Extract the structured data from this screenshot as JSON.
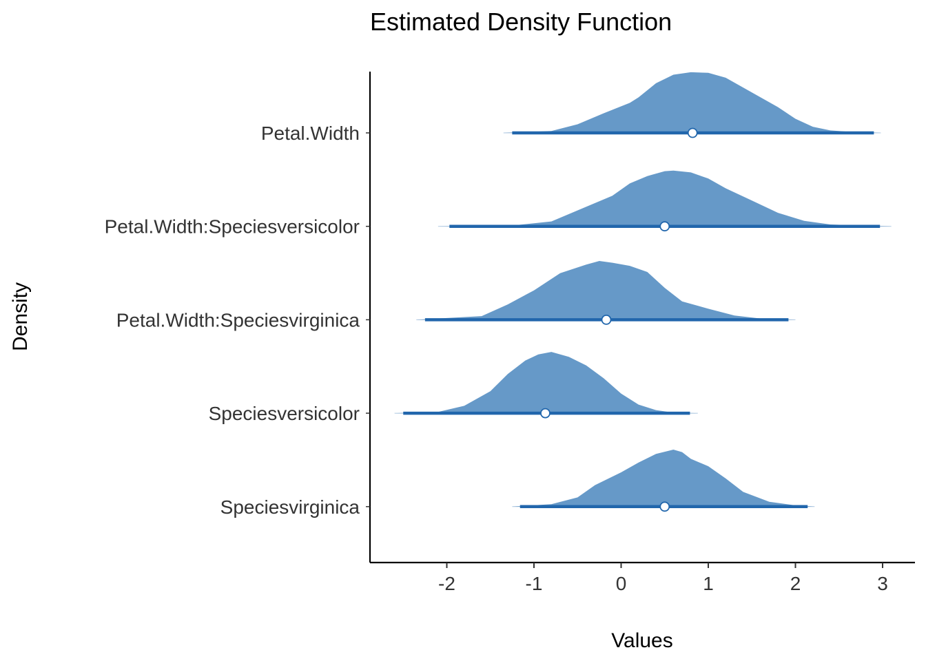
{
  "chart_data": {
    "type": "density-ridge",
    "title": "Estimated Density Function",
    "xlabel": "Values",
    "ylabel": "Density",
    "xlim": [
      -2.9,
      3.4
    ],
    "xticks": [
      -2,
      -1,
      0,
      1,
      2,
      3
    ],
    "grid": false,
    "legend": "none",
    "colors": {
      "fill": "#6699c8",
      "line": "#2166ac",
      "point_fill": "#ffffff",
      "point_stroke": "#2166ac"
    },
    "series": [
      {
        "label": "Petal.Width",
        "median": 0.82,
        "interval": [
          -1.25,
          2.9
        ],
        "range": [
          -1.35,
          2.98
        ],
        "density": [
          [
            -1.35,
            0.0
          ],
          [
            -0.8,
            0.03
          ],
          [
            -0.5,
            0.14
          ],
          [
            -0.2,
            0.32
          ],
          [
            0.1,
            0.49
          ],
          [
            0.2,
            0.58
          ],
          [
            0.4,
            0.81
          ],
          [
            0.6,
            0.95
          ],
          [
            0.8,
            0.99
          ],
          [
            1.0,
            0.98
          ],
          [
            1.2,
            0.9
          ],
          [
            1.4,
            0.74
          ],
          [
            1.6,
            0.58
          ],
          [
            1.8,
            0.42
          ],
          [
            2.0,
            0.23
          ],
          [
            2.2,
            0.1
          ],
          [
            2.4,
            0.04
          ],
          [
            2.7,
            0.01
          ],
          [
            2.98,
            0.0
          ]
        ]
      },
      {
        "label": "Petal.Width:Speciesversicolor",
        "median": 0.5,
        "interval": [
          -1.97,
          2.97
        ],
        "range": [
          -2.1,
          3.1
        ],
        "density": [
          [
            -2.1,
            0.0
          ],
          [
            -1.2,
            0.02
          ],
          [
            -0.8,
            0.08
          ],
          [
            -0.4,
            0.32
          ],
          [
            -0.1,
            0.5
          ],
          [
            0.1,
            0.7
          ],
          [
            0.3,
            0.82
          ],
          [
            0.5,
            0.9
          ],
          [
            0.6,
            0.91
          ],
          [
            0.8,
            0.88
          ],
          [
            1.0,
            0.78
          ],
          [
            1.2,
            0.62
          ],
          [
            1.5,
            0.42
          ],
          [
            1.8,
            0.22
          ],
          [
            2.1,
            0.09
          ],
          [
            2.4,
            0.03
          ],
          [
            2.8,
            0.01
          ],
          [
            3.1,
            0.0
          ]
        ]
      },
      {
        "label": "Petal.Width:Speciesvirginica",
        "median": -0.17,
        "interval": [
          -2.25,
          1.92
        ],
        "range": [
          -2.35,
          2.0
        ],
        "density": [
          [
            -2.35,
            0.0
          ],
          [
            -1.6,
            0.06
          ],
          [
            -1.3,
            0.25
          ],
          [
            -1.0,
            0.48
          ],
          [
            -0.7,
            0.76
          ],
          [
            -0.4,
            0.9
          ],
          [
            -0.25,
            0.96
          ],
          [
            -0.1,
            0.93
          ],
          [
            0.1,
            0.88
          ],
          [
            0.3,
            0.78
          ],
          [
            0.5,
            0.52
          ],
          [
            0.7,
            0.3
          ],
          [
            1.0,
            0.18
          ],
          [
            1.3,
            0.07
          ],
          [
            1.6,
            0.02
          ],
          [
            2.0,
            0.0
          ]
        ]
      },
      {
        "label": "Speciesversicolor",
        "median": -0.87,
        "interval": [
          -2.5,
          0.79
        ],
        "range": [
          -2.6,
          0.88
        ],
        "density": [
          [
            -2.6,
            0.0
          ],
          [
            -2.1,
            0.02
          ],
          [
            -1.8,
            0.12
          ],
          [
            -1.5,
            0.36
          ],
          [
            -1.3,
            0.64
          ],
          [
            -1.1,
            0.86
          ],
          [
            -0.95,
            0.96
          ],
          [
            -0.8,
            1.0
          ],
          [
            -0.6,
            0.92
          ],
          [
            -0.4,
            0.78
          ],
          [
            -0.2,
            0.57
          ],
          [
            0.0,
            0.32
          ],
          [
            0.2,
            0.14
          ],
          [
            0.4,
            0.05
          ],
          [
            0.6,
            0.01
          ],
          [
            0.88,
            0.0
          ]
        ]
      },
      {
        "label": "Speciesvirginica",
        "median": 0.5,
        "interval": [
          -1.16,
          2.14
        ],
        "range": [
          -1.25,
          2.22
        ],
        "density": [
          [
            -1.25,
            0.0
          ],
          [
            -0.8,
            0.04
          ],
          [
            -0.5,
            0.15
          ],
          [
            -0.3,
            0.35
          ],
          [
            0.0,
            0.56
          ],
          [
            0.2,
            0.72
          ],
          [
            0.4,
            0.86
          ],
          [
            0.6,
            0.93
          ],
          [
            0.7,
            0.89
          ],
          [
            0.8,
            0.78
          ],
          [
            1.0,
            0.66
          ],
          [
            1.2,
            0.46
          ],
          [
            1.4,
            0.24
          ],
          [
            1.7,
            0.08
          ],
          [
            2.0,
            0.02
          ],
          [
            2.22,
            0.0
          ]
        ]
      }
    ]
  }
}
